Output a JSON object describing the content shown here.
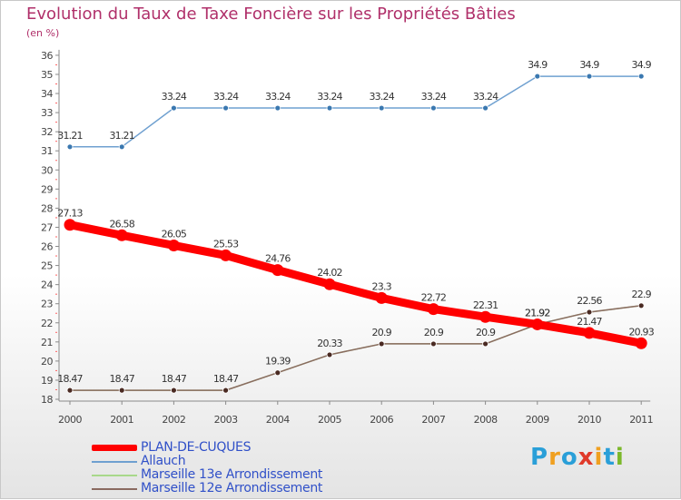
{
  "title": "Evolution du Taux de Taxe Foncière sur les Propriétés Bâties",
  "subtitle": "(en %)",
  "logo": {
    "letters": [
      "P",
      "r",
      "o",
      "x",
      "i",
      "t",
      "i"
    ],
    "colors": [
      "#2a9fd8",
      "#f0a020",
      "#2a9fd8",
      "#e03a2a",
      "#f0a020",
      "#2a9fd8",
      "#7cb82a"
    ]
  },
  "chart_data": {
    "type": "line",
    "title": "Evolution du Taux de Taxe Foncière sur les Propriétés Bâties",
    "ylabel": "(en %)",
    "xlabel": "",
    "ylim": [
      18,
      36
    ],
    "yticks": [
      18,
      19,
      20,
      21,
      22,
      23,
      24,
      25,
      26,
      27,
      28,
      29,
      30,
      31,
      32,
      33,
      34,
      35,
      36
    ],
    "categories": [
      "2000",
      "2001",
      "2002",
      "2003",
      "2004",
      "2005",
      "2006",
      "2007",
      "2008",
      "2009",
      "2010",
      "2011"
    ],
    "grid": false,
    "legend_position": "bottom-left",
    "series": [
      {
        "name": "PLAN-DE-CUQUES",
        "color": "#ff0000",
        "width": "thick",
        "values": [
          27.13,
          26.58,
          26.05,
          25.53,
          24.76,
          24.02,
          23.3,
          22.72,
          22.31,
          21.92,
          21.47,
          20.93
        ],
        "labels": [
          "27.13",
          "26.58",
          "26.05",
          "25.53",
          "24.76",
          "24.02",
          "23.3",
          "22.72",
          "22.31",
          "21.92",
          "21.47",
          "20.93"
        ]
      },
      {
        "name": "Allauch",
        "color": "#6fa0d0",
        "width": "thin",
        "values": [
          31.21,
          31.21,
          33.24,
          33.24,
          33.24,
          33.24,
          33.24,
          33.24,
          33.24,
          34.9,
          34.9,
          34.9
        ],
        "labels": [
          "31.21",
          "31.21",
          "33.24",
          "33.24",
          "33.24",
          "33.24",
          "33.24",
          "33.24",
          "33.24",
          "34.9",
          "34.9",
          "34.9"
        ]
      },
      {
        "name": "Marseille 13e  Arrondissement",
        "color": "#a8d88a",
        "width": "thin",
        "values": [
          18.47,
          18.47,
          18.47,
          18.47,
          19.39,
          20.33,
          20.9,
          20.9,
          20.9,
          21.92,
          22.56,
          22.9
        ],
        "labels": []
      },
      {
        "name": "Marseille 12e  Arrondissement",
        "color": "#8a6a60",
        "width": "thin",
        "values": [
          18.47,
          18.47,
          18.47,
          18.47,
          19.39,
          20.33,
          20.9,
          20.9,
          20.9,
          21.92,
          22.56,
          22.9
        ],
        "labels": [
          "18.47",
          "18.47",
          "18.47",
          "18.47",
          "19.39",
          "20.33",
          "20.9",
          "20.9",
          "20.9",
          "21.92",
          "22.56",
          "22.9"
        ]
      }
    ]
  }
}
